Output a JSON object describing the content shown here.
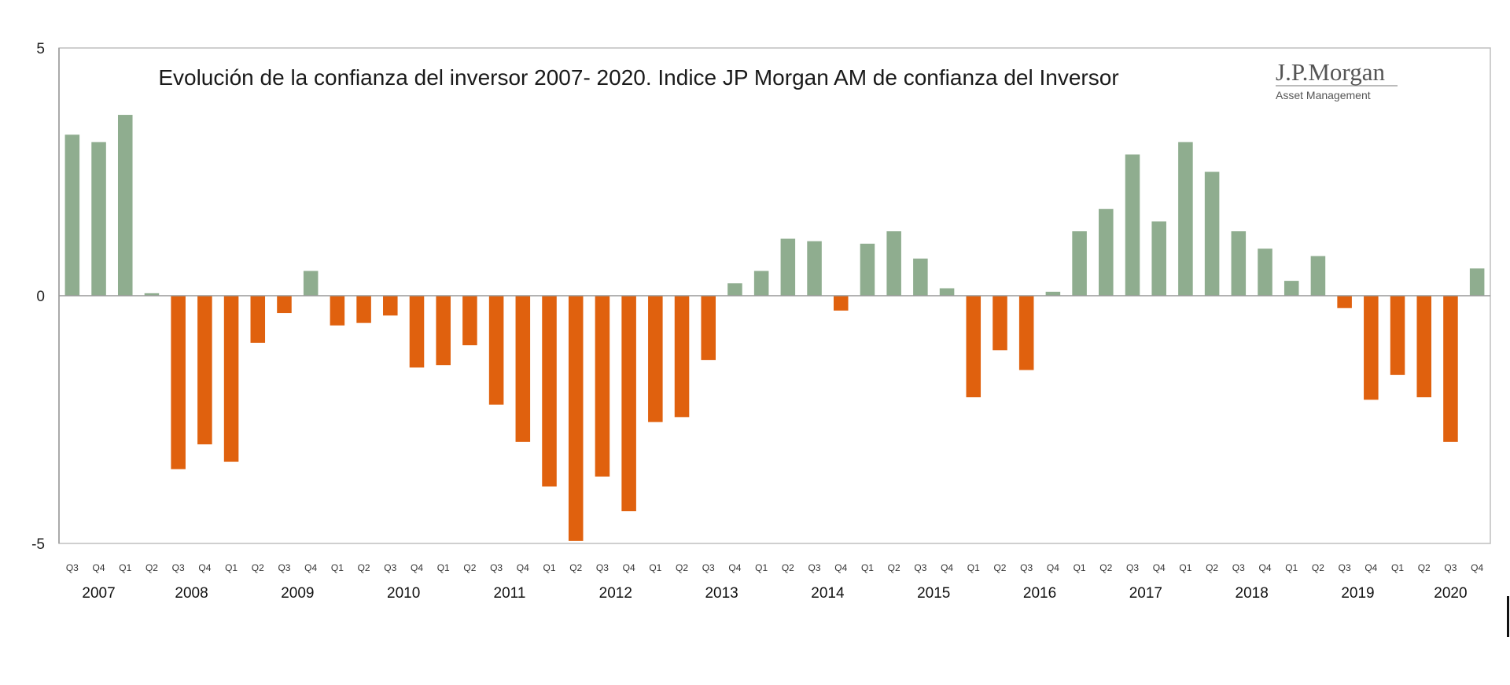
{
  "chart_data": {
    "type": "bar",
    "title": "Evolución de la confianza del inversor 2007- 2020. Indice JP Morgan AM de confianza del Inversor",
    "ylim": [
      -5,
      5
    ],
    "yticks": [
      "5",
      "0",
      "-5"
    ],
    "quarters": [
      "Q3",
      "Q4",
      "Q1",
      "Q2",
      "Q3",
      "Q4",
      "Q1",
      "Q2",
      "Q3",
      "Q4",
      "Q1",
      "Q2",
      "Q3",
      "Q4",
      "Q1",
      "Q2",
      "Q3",
      "Q4",
      "Q1",
      "Q2",
      "Q3",
      "Q4",
      "Q1",
      "Q2",
      "Q3",
      "Q4",
      "Q1",
      "Q2",
      "Q3",
      "Q4",
      "Q1",
      "Q2",
      "Q3",
      "Q4",
      "Q1",
      "Q2",
      "Q3",
      "Q4",
      "Q1",
      "Q2",
      "Q3",
      "Q4",
      "Q1",
      "Q2",
      "Q3",
      "Q4",
      "Q1",
      "Q2",
      "Q3",
      "Q4",
      "Q1",
      "Q2",
      "Q3",
      "Q4"
    ],
    "values": [
      3.25,
      3.1,
      3.65,
      0.05,
      -3.5,
      -3.0,
      -3.35,
      -0.95,
      -0.35,
      0.5,
      -0.6,
      -0.55,
      -0.4,
      -1.45,
      -1.4,
      -1.0,
      -2.2,
      -2.95,
      -3.85,
      -4.95,
      -3.65,
      -4.35,
      -2.55,
      -2.45,
      -1.3,
      0.25,
      0.5,
      1.15,
      1.1,
      -0.3,
      1.05,
      1.3,
      0.75,
      0.15,
      -2.05,
      -1.1,
      -1.5,
      0.08,
      1.3,
      1.75,
      2.85,
      1.5,
      3.1,
      2.5,
      1.3,
      0.95,
      0.3,
      0.8,
      -0.25,
      -2.1,
      -1.6,
      -2.05,
      -2.95,
      0.55
    ],
    "years": [
      {
        "label": "2007",
        "start": 0,
        "end": 2
      },
      {
        "label": "2008",
        "start": 3,
        "end": 6
      },
      {
        "label": "2009",
        "start": 7,
        "end": 10
      },
      {
        "label": "2010",
        "start": 11,
        "end": 14
      },
      {
        "label": "2011",
        "start": 15,
        "end": 18
      },
      {
        "label": "2012",
        "start": 19,
        "end": 22
      },
      {
        "label": "2013",
        "start": 23,
        "end": 26
      },
      {
        "label": "2014",
        "start": 27,
        "end": 30
      },
      {
        "label": "2015",
        "start": 31,
        "end": 34
      },
      {
        "label": "2016",
        "start": 35,
        "end": 38
      },
      {
        "label": "2017",
        "start": 39,
        "end": 42
      },
      {
        "label": "2018",
        "start": 43,
        "end": 46
      },
      {
        "label": "2019",
        "start": 47,
        "end": 50
      },
      {
        "label": "2020",
        "start": 51,
        "end": 53
      }
    ],
    "colors": {
      "positive": "#8fad8f",
      "negative": "#e0610e"
    },
    "grid": false,
    "legend": "none"
  },
  "logo": {
    "name": "J.P.Morgan",
    "sub": "Asset Management"
  }
}
